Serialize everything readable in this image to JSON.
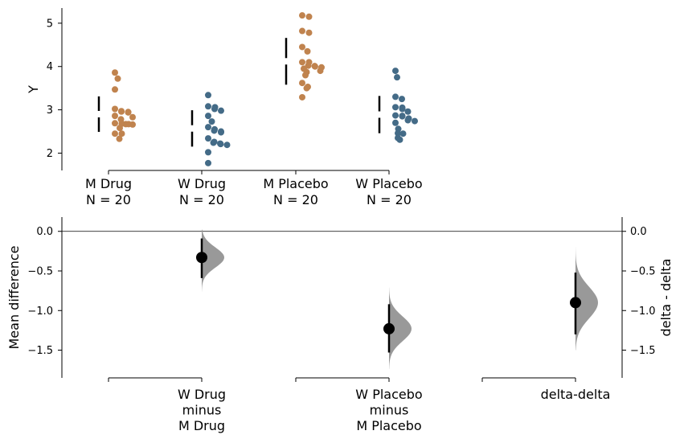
{
  "chart_data": [
    {
      "type": "scatter",
      "subtype": "swarm",
      "ylabel": "Y",
      "ylim": [
        1.6,
        5.35
      ],
      "yticks": [
        2,
        3,
        4,
        5
      ],
      "groups": [
        {
          "label_line1": "M Drug",
          "label_line2": "N = 20",
          "color": "#C0834E",
          "values": [
            2.33,
            2.45,
            2.45,
            2.58,
            2.66,
            2.67,
            2.68,
            2.69,
            2.78,
            2.83,
            2.86,
            2.94,
            2.95,
            2.96,
            2.97,
            3.02,
            3.47,
            3.72,
            3.86,
            2.67
          ],
          "mean": 2.9,
          "sd_lower": 2.49,
          "sd_upper": 3.31
        },
        {
          "label_line1": "W Drug",
          "label_line2": "N = 20",
          "color": "#446B87",
          "values": [
            1.77,
            2.02,
            2.19,
            2.21,
            2.22,
            2.24,
            2.26,
            2.34,
            2.48,
            2.5,
            2.52,
            2.55,
            2.6,
            2.73,
            2.86,
            2.98,
            3.02,
            3.06,
            3.08,
            3.34
          ],
          "mean": 2.57,
          "sd_lower": 2.15,
          "sd_upper": 2.99
        },
        {
          "label_line1": "M Placebo",
          "label_line2": "N = 20",
          "color": "#C0834E",
          "values": [
            3.29,
            3.5,
            3.53,
            3.62,
            3.8,
            3.87,
            3.9,
            3.95,
            3.98,
            4.0,
            4.01,
            4.02,
            4.1,
            4.1,
            4.35,
            4.45,
            4.78,
            4.82,
            5.15,
            5.18
          ],
          "mean": 4.12,
          "sd_lower": 3.58,
          "sd_upper": 4.66
        },
        {
          "label_line1": "W Placebo",
          "label_line2": "N = 20",
          "color": "#446B87",
          "values": [
            2.31,
            2.35,
            2.45,
            2.46,
            2.56,
            2.7,
            2.74,
            2.76,
            2.8,
            2.85,
            2.86,
            2.87,
            2.96,
            3.02,
            3.05,
            3.06,
            3.25,
            3.3,
            3.75,
            3.9
          ],
          "mean": 2.89,
          "sd_lower": 2.46,
          "sd_upper": 3.32
        }
      ]
    },
    {
      "type": "scatter",
      "subtype": "estimation",
      "ylabel": "Mean difference",
      "ylabel_right": "delta - delta",
      "ylim": [
        -1.85,
        0.18
      ],
      "yticks": [
        0.0,
        -0.5,
        -1.0,
        -1.5
      ],
      "ytick_labels": [
        "0.0",
        "−0.5",
        "−1.0",
        "−1.5"
      ],
      "zero_line": true,
      "comparisons": [
        {
          "label_lines": [
            "W Drug",
            "minus",
            "M Drug"
          ],
          "effect": -0.33,
          "ci": [
            -0.59,
            -0.09
          ],
          "dist_range": [
            -0.76,
            0.02
          ]
        },
        {
          "label_lines": [
            "W Placebo",
            "minus",
            "M Placebo"
          ],
          "effect": -1.23,
          "ci": [
            -1.53,
            -0.92
          ],
          "dist_range": [
            -1.74,
            -0.71
          ]
        },
        {
          "label_lines": [
            "delta-delta"
          ],
          "effect": -0.9,
          "ci": [
            -1.3,
            -0.52
          ],
          "dist_range": [
            -1.5,
            -0.2
          ]
        }
      ],
      "dist_color": "#999999",
      "point_color": "#000000"
    }
  ]
}
